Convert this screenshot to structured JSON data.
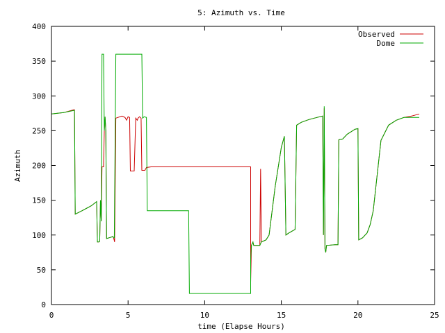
{
  "chart_data": {
    "type": "line",
    "title": "5: Azimuth vs. Time",
    "xlabel": "time (Elapse Hours)",
    "ylabel": "Azimuth",
    "xlim": [
      0,
      25
    ],
    "ylim": [
      0,
      400
    ],
    "xticks": [
      0,
      5,
      10,
      15,
      20,
      25
    ],
    "yticks": [
      0,
      50,
      100,
      150,
      200,
      250,
      300,
      350,
      400
    ],
    "xtick_labels": [
      "0",
      "5",
      "10",
      "15",
      "20",
      "25"
    ],
    "ytick_labels": [
      "0",
      "50",
      "100",
      "150",
      "200",
      "250",
      "300",
      "350",
      "400"
    ],
    "grid": false,
    "legend_position": "top-right",
    "series": [
      {
        "name": "Observed",
        "color": "#cc0000",
        "points": [
          [
            0,
            274
          ],
          [
            0.8,
            276
          ],
          [
            1.45,
            280
          ],
          [
            1.5,
            280
          ],
          [
            1.55,
            130
          ],
          [
            2,
            135
          ],
          [
            2.6,
            142
          ],
          [
            2.95,
            148
          ],
          [
            3,
            90
          ],
          [
            3.1,
            90
          ],
          [
            3.15,
            91
          ],
          [
            3.2,
            150
          ],
          [
            3.25,
            120
          ],
          [
            3.3,
            198
          ],
          [
            3.4,
            198
          ],
          [
            3.45,
            250
          ],
          [
            3.5,
            270
          ],
          [
            3.55,
            250
          ],
          [
            3.6,
            95
          ],
          [
            3.9,
            97
          ],
          [
            4,
            98
          ],
          [
            4.05,
            96
          ],
          [
            4.1,
            92
          ],
          [
            4.12,
            90
          ],
          [
            4.2,
            268
          ],
          [
            4.6,
            271
          ],
          [
            4.8,
            269
          ],
          [
            4.9,
            265
          ],
          [
            5,
            270
          ],
          [
            5.1,
            269
          ],
          [
            5.15,
            192
          ],
          [
            5.3,
            192
          ],
          [
            5.4,
            192
          ],
          [
            5.5,
            268
          ],
          [
            5.6,
            265
          ],
          [
            5.65,
            268
          ],
          [
            5.75,
            270
          ],
          [
            5.85,
            268
          ],
          [
            5.9,
            193
          ],
          [
            6.1,
            193
          ],
          [
            6.2,
            197
          ],
          [
            6.5,
            198
          ],
          [
            13,
            198
          ],
          [
            13,
            32
          ],
          [
            13.05,
            85
          ],
          [
            13.15,
            90
          ],
          [
            13.2,
            85
          ],
          [
            13.6,
            85
          ],
          [
            13.65,
            195
          ],
          [
            13.7,
            90
          ],
          [
            14,
            93
          ],
          [
            14.2,
            100
          ],
          [
            14.6,
            170
          ],
          [
            15,
            226
          ],
          [
            15.2,
            242
          ],
          [
            15.3,
            100
          ],
          [
            15.5,
            103
          ],
          [
            15.9,
            108
          ],
          [
            16,
            258
          ],
          [
            16.3,
            262
          ],
          [
            16.8,
            266
          ],
          [
            17.5,
            270
          ],
          [
            17.7,
            271
          ],
          [
            17.75,
            100
          ],
          [
            17.8,
            282
          ],
          [
            17.85,
            80
          ],
          [
            17.9,
            75
          ],
          [
            17.95,
            85
          ],
          [
            18.5,
            86
          ],
          [
            18.7,
            86
          ],
          [
            18.75,
            237
          ],
          [
            19,
            238
          ],
          [
            19.3,
            245
          ],
          [
            19.8,
            252
          ],
          [
            20,
            253
          ],
          [
            20.05,
            93
          ],
          [
            20.3,
            96
          ],
          [
            20.6,
            103
          ],
          [
            20.8,
            115
          ],
          [
            21,
            135
          ],
          [
            21.2,
            175
          ],
          [
            21.5,
            236
          ],
          [
            22,
            258
          ],
          [
            22.5,
            265
          ],
          [
            23,
            269
          ],
          [
            23.5,
            271
          ],
          [
            24,
            274
          ]
        ]
      },
      {
        "name": "Dome",
        "color": "#00aa00",
        "points": [
          [
            0,
            274
          ],
          [
            0.8,
            276
          ],
          [
            1.45,
            279
          ],
          [
            1.5,
            279
          ],
          [
            1.55,
            130
          ],
          [
            2,
            135
          ],
          [
            2.6,
            142
          ],
          [
            2.95,
            148
          ],
          [
            3,
            90
          ],
          [
            3.1,
            90
          ],
          [
            3.15,
            91
          ],
          [
            3.2,
            150
          ],
          [
            3.25,
            120
          ],
          [
            3.3,
            360
          ],
          [
            3.4,
            360
          ],
          [
            3.45,
            250
          ],
          [
            3.5,
            270
          ],
          [
            3.55,
            250
          ],
          [
            3.6,
            95
          ],
          [
            3.9,
            97
          ],
          [
            4,
            98
          ],
          [
            4.05,
            96
          ],
          [
            4.1,
            96
          ],
          [
            4.2,
            360
          ],
          [
            5.9,
            360
          ],
          [
            5.95,
            268
          ],
          [
            6.05,
            270
          ],
          [
            6.2,
            269
          ],
          [
            6.25,
            135
          ],
          [
            6.5,
            135
          ],
          [
            8.8,
            135
          ],
          [
            8.95,
            135
          ],
          [
            9,
            16
          ],
          [
            13,
            16
          ],
          [
            13,
            65
          ],
          [
            13.05,
            85
          ],
          [
            13.15,
            90
          ],
          [
            13.2,
            85
          ],
          [
            13.6,
            85
          ],
          [
            13.7,
            90
          ],
          [
            14,
            93
          ],
          [
            14.2,
            100
          ],
          [
            14.6,
            170
          ],
          [
            15,
            226
          ],
          [
            15.2,
            242
          ],
          [
            15.3,
            100
          ],
          [
            15.5,
            103
          ],
          [
            15.9,
            108
          ],
          [
            16,
            258
          ],
          [
            16.3,
            262
          ],
          [
            16.8,
            266
          ],
          [
            17.5,
            270
          ],
          [
            17.7,
            271
          ],
          [
            17.75,
            100
          ],
          [
            17.8,
            285
          ],
          [
            17.85,
            80
          ],
          [
            17.9,
            75
          ],
          [
            17.95,
            85
          ],
          [
            18.5,
            86
          ],
          [
            18.7,
            86
          ],
          [
            18.75,
            237
          ],
          [
            19,
            238
          ],
          [
            19.3,
            245
          ],
          [
            19.8,
            252
          ],
          [
            20,
            253
          ],
          [
            20.05,
            93
          ],
          [
            20.3,
            96
          ],
          [
            20.6,
            103
          ],
          [
            20.8,
            115
          ],
          [
            21,
            135
          ],
          [
            21.2,
            175
          ],
          [
            21.5,
            236
          ],
          [
            22,
            258
          ],
          [
            22.5,
            265
          ],
          [
            23,
            269
          ],
          [
            23.5,
            269
          ],
          [
            24,
            269
          ]
        ]
      }
    ]
  }
}
